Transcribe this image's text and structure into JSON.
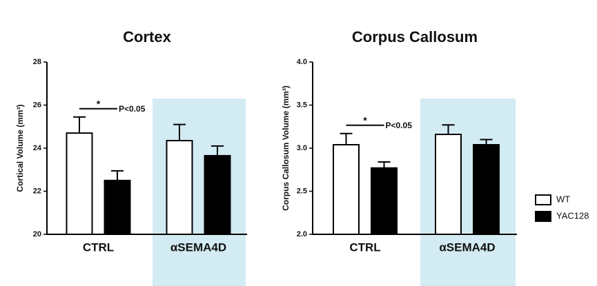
{
  "chart_data": [
    {
      "type": "bar",
      "title": "Cortex",
      "y_label": "Cortical Volume (mm³)",
      "categories": [
        "CTRL",
        "αSEMA4D"
      ],
      "series": [
        {
          "name": "WT",
          "color": "#ffffff",
          "values": [
            24.7,
            24.35
          ],
          "errors": [
            0.75,
            0.75
          ]
        },
        {
          "name": "YAC128",
          "color": "#000000",
          "values": [
            22.5,
            23.65
          ],
          "errors": [
            0.45,
            0.45
          ]
        }
      ],
      "ylim": [
        20,
        28
      ],
      "yticks": [
        20,
        22,
        24,
        26,
        28
      ],
      "annotations": [
        "*",
        "P<0.05"
      ],
      "highlight_color": "#d3ebf3"
    },
    {
      "type": "bar",
      "title": "Corpus Callosum",
      "y_label": "Corpus Callosum Volume (mm³)",
      "categories": [
        "CTRL",
        "αSEMA4D"
      ],
      "series": [
        {
          "name": "WT",
          "color": "#ffffff",
          "values": [
            3.04,
            3.16
          ],
          "errors": [
            0.13,
            0.11
          ]
        },
        {
          "name": "YAC128",
          "color": "#000000",
          "values": [
            2.77,
            3.04
          ],
          "errors": [
            0.07,
            0.06
          ]
        }
      ],
      "ylim": [
        2,
        4
      ],
      "yticks": [
        {
          "value": 2,
          "label": "2.0"
        },
        {
          "value": 2.5,
          "label": "2.5"
        },
        {
          "value": 3,
          "label": "3.0"
        },
        {
          "value": 3.5,
          "label": "3.5"
        },
        {
          "value": 4,
          "label": "4.0"
        }
      ],
      "annotations": [
        "*",
        "P<0.05"
      ],
      "highlight_color": "#d3ebf3"
    }
  ]
}
